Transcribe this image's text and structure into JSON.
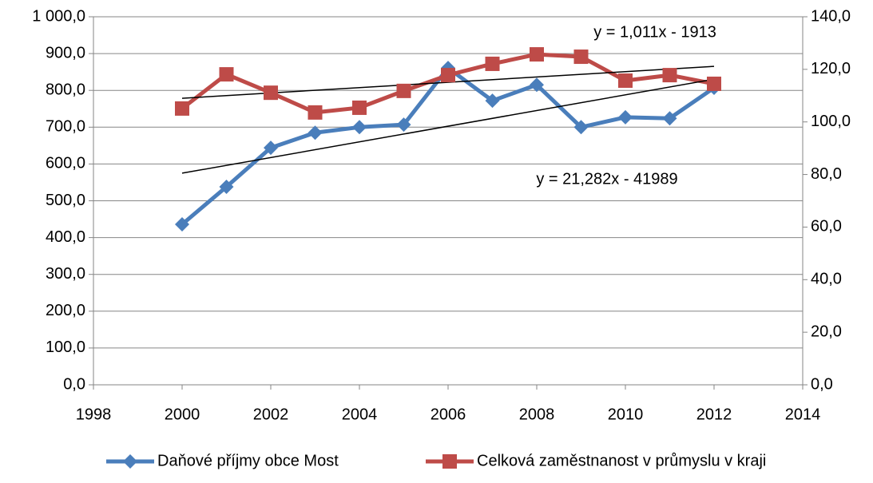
{
  "chart_data": {
    "type": "line",
    "x": [
      2000,
      2001,
      2002,
      2003,
      2004,
      2005,
      2006,
      2007,
      2008,
      2009,
      2010,
      2011,
      2012
    ],
    "series": [
      {
        "name": "Daňové příjmy obce Most",
        "color": "#4a7ebb",
        "marker": "diamond",
        "values": [
          436,
          538,
          644,
          685,
          700,
          707,
          861,
          772,
          815,
          700,
          727,
          724,
          807
        ]
      },
      {
        "name": "Celková zaměstnanost v průmyslu v kraji",
        "color": "#be4b48",
        "marker": "square",
        "axis": "y2",
        "values": [
          105.1,
          118.1,
          111.1,
          103.6,
          105.4,
          111.8,
          117.8,
          122.1,
          125.7,
          124.8,
          115.7,
          117.8,
          114.5
        ]
      }
    ],
    "trendlines": [
      {
        "label": "y = 1,011x - 1913",
        "slope": 1.011,
        "intercept": -1913,
        "axis": "y2"
      },
      {
        "label": "y = 21,282x - 41989",
        "slope": 21.282,
        "intercept": -41989
      }
    ],
    "xlim": [
      1998,
      2014
    ],
    "xticks": [
      1998,
      2000,
      2002,
      2004,
      2006,
      2008,
      2010,
      2012,
      2014
    ],
    "ylim": [
      0,
      1000
    ],
    "yticks": [
      {
        "value": 0,
        "label": "0,0"
      },
      {
        "value": 100,
        "label": "100,0"
      },
      {
        "value": 200,
        "label": "200,0"
      },
      {
        "value": 300,
        "label": "300,0"
      },
      {
        "value": 400,
        "label": "400,0"
      },
      {
        "value": 500,
        "label": "500,0"
      },
      {
        "value": 600,
        "label": "600,0"
      },
      {
        "value": 700,
        "label": "700,0"
      },
      {
        "value": 800,
        "label": "800,0"
      },
      {
        "value": 900,
        "label": "900,0"
      },
      {
        "value": 1000,
        "label": "1 000,0"
      }
    ],
    "y2lim": [
      0,
      140
    ],
    "y2ticks": [
      {
        "value": 0,
        "label": "0,0"
      },
      {
        "value": 20,
        "label": "20,0"
      },
      {
        "value": 40,
        "label": "40,0"
      },
      {
        "value": 60,
        "label": "60,0"
      },
      {
        "value": 80,
        "label": "80,0"
      },
      {
        "value": 100,
        "label": "100,0"
      },
      {
        "value": 120,
        "label": "120,0"
      },
      {
        "value": 140,
        "label": "140,0"
      }
    ],
    "grid": true,
    "legend": "bottom"
  }
}
